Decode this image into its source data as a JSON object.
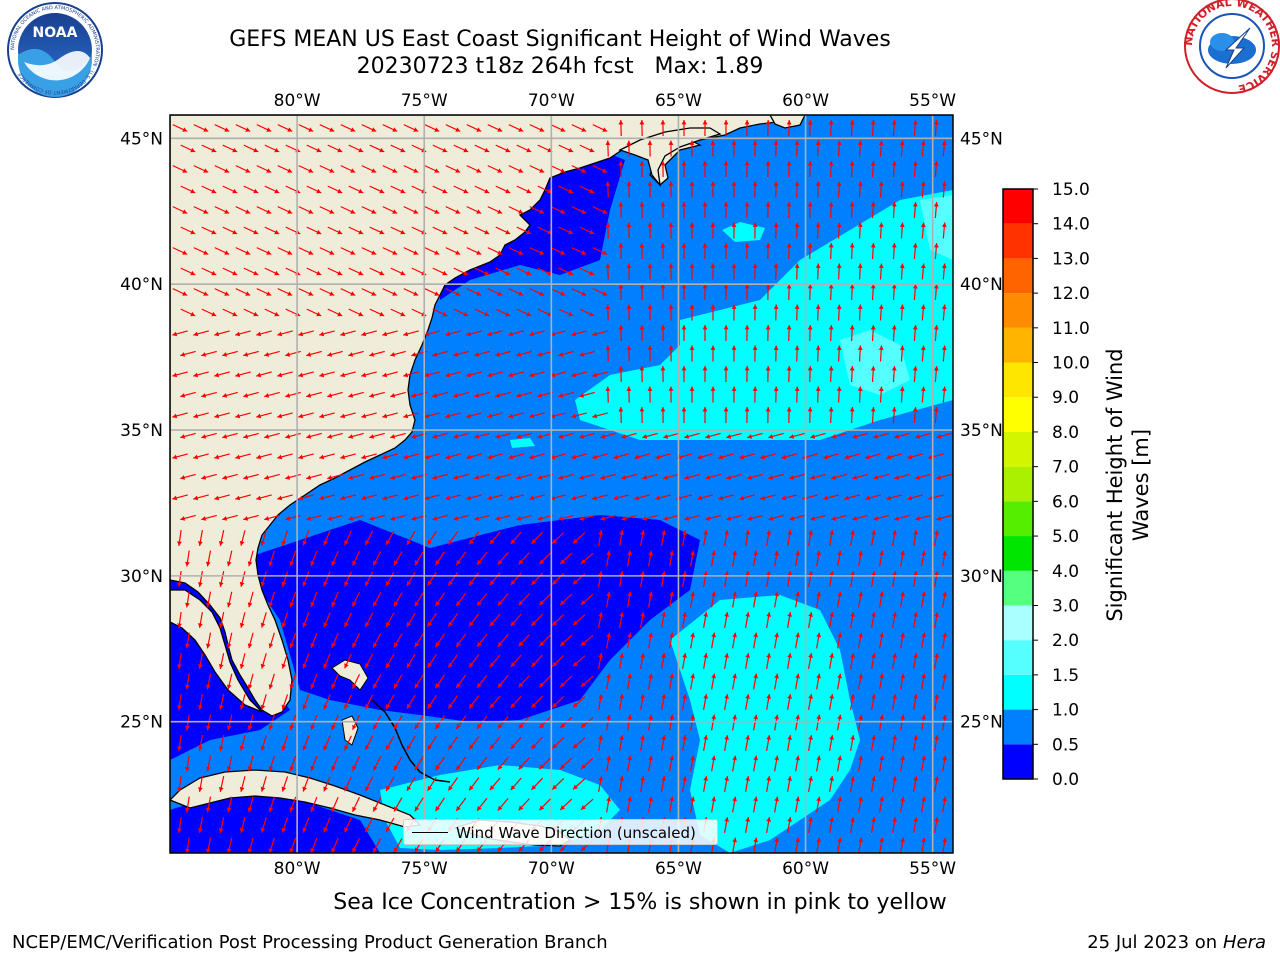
{
  "title": {
    "line1": "GEFS MEAN US East Coast Significant Height of Wind Waves",
    "line2": "20230723 t18z 264h fcst   Max: 1.89"
  },
  "logos": {
    "left": {
      "text": "NOAA",
      "icon": "noaa-logo-icon",
      "ring_text": "NATIONAL OCEANIC AND ATMOSPHERIC ADMINISTRATION · U.S. DEPARTMENT OF COMMERCE"
    },
    "right": {
      "icon": "nws-logo-icon",
      "ring_text": "NATIONAL WEATHER SERVICE"
    }
  },
  "map": {
    "lon_range": [
      -85,
      -54.2
    ],
    "lat_range": [
      20.5,
      45.8
    ],
    "lon_ticks": [
      {
        "value": -80,
        "label": "80°W"
      },
      {
        "value": -75,
        "label": "75°W"
      },
      {
        "value": -70,
        "label": "70°W"
      },
      {
        "value": -65,
        "label": "65°W"
      },
      {
        "value": -60,
        "label": "60°W"
      },
      {
        "value": -55,
        "label": "55°W"
      }
    ],
    "lat_ticks": [
      {
        "value": 45,
        "label": "45°N"
      },
      {
        "value": 40,
        "label": "40°N"
      },
      {
        "value": 35,
        "label": "35°N"
      },
      {
        "value": 30,
        "label": "30°N"
      },
      {
        "value": 25,
        "label": "25°N"
      }
    ],
    "grid": true,
    "colors": {
      "land": "#efedda",
      "ocean_0_0_5": "#0000ff",
      "ocean_0_5_1_0": "#0080ff",
      "ocean_1_0_1_5": "#00ffff",
      "ocean_1_5_2_0": "#55ffff",
      "arrow": "#ff0000",
      "grid": "#b0b0b0"
    },
    "legend": {
      "label": "Wind Wave Direction (unscaled)",
      "placement": "bottom-center"
    }
  },
  "colorbar": {
    "label": "Significant Height of Wind Waves [m]",
    "label_line1": "Significant Height of Wind",
    "label_line2": "Waves [m]",
    "levels": [
      {
        "value": "0.0",
        "color": "#0000ff"
      },
      {
        "value": "0.5",
        "color": "#0080ff"
      },
      {
        "value": "1.0",
        "color": "#00ffff"
      },
      {
        "value": "1.5",
        "color": "#55ffff"
      },
      {
        "value": "2.0",
        "color": "#aaffff"
      },
      {
        "value": "3.0",
        "color": "#55ff80"
      },
      {
        "value": "4.0",
        "color": "#00e600"
      },
      {
        "value": "5.0",
        "color": "#55ee00"
      },
      {
        "value": "6.0",
        "color": "#aaf000"
      },
      {
        "value": "7.0",
        "color": "#d4f500"
      },
      {
        "value": "8.0",
        "color": "#ffff00"
      },
      {
        "value": "9.0",
        "color": "#ffe600"
      },
      {
        "value": "10.0",
        "color": "#ffb400"
      },
      {
        "value": "11.0",
        "color": "#ff8c00"
      },
      {
        "value": "12.0",
        "color": "#ff6400"
      },
      {
        "value": "13.0",
        "color": "#ff3200"
      },
      {
        "value": "14.0",
        "color": "#ff0000"
      },
      {
        "value": "15.0",
        "color": ""
      }
    ]
  },
  "ice_note": "Sea Ice Concentration > 15% is shown in pink to yellow",
  "footer": {
    "left": "NCEP/EMC/Verification Post Processing Product Generation Branch",
    "right_date": "25 Jul 2023 on ",
    "right_machine": "Hera"
  }
}
